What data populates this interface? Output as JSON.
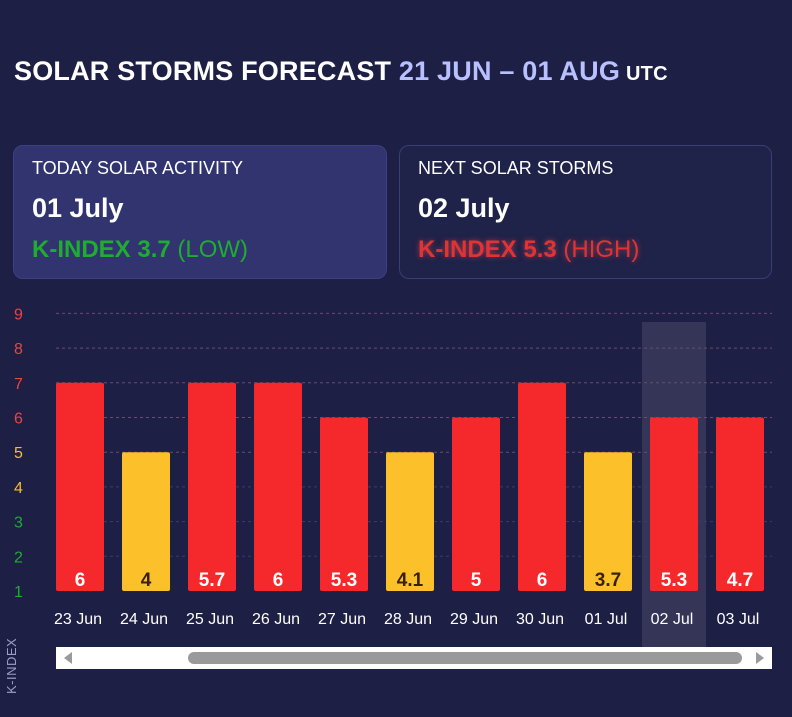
{
  "header": {
    "title": "SOLAR STORMS FORECAST",
    "range": "21 JUN – 01 AUG",
    "tz": "UTC"
  },
  "today": {
    "label": "TODAY SOLAR ACTIVITY",
    "date": "01 July",
    "kindex_label": "K-INDEX 3.7",
    "level": "(LOW)"
  },
  "next": {
    "label": "NEXT SOLAR STORMS",
    "date": "02 July",
    "kindex_label": "K-INDEX 5.3",
    "level": "(HIGH)"
  },
  "chart_data": {
    "type": "bar",
    "title": "",
    "xlabel": "",
    "ylabel": "K-INDEX",
    "ylim": [
      1,
      9
    ],
    "yticks": [
      1,
      2,
      3,
      4,
      5,
      6,
      7,
      8,
      9
    ],
    "ytick_colors": [
      "#1eac33",
      "#1eac33",
      "#1eac33",
      "#f5c02b",
      "#f5c02b",
      "#e84545",
      "#e84545",
      "#e84545",
      "#e84545"
    ],
    "categories": [
      "23 Jun",
      "24 Jun",
      "25 Jun",
      "26 Jun",
      "27 Jun",
      "28 Jun",
      "29 Jun",
      "30 Jun",
      "01 Jul",
      "02 Jul",
      "03 Jul"
    ],
    "values": [
      6,
      4,
      5.7,
      6,
      5.3,
      4.1,
      5,
      6,
      3.7,
      5.3,
      4.7
    ],
    "bar_heights": [
      7,
      5,
      7,
      7,
      6,
      5,
      6,
      7,
      5,
      6,
      6
    ],
    "labels": [
      "6",
      "4",
      "5.7",
      "6",
      "5.3",
      "4.1",
      "5",
      "6",
      "3.7",
      "5.3",
      "4.7"
    ],
    "bar_colors": [
      "#f5292b",
      "#fbc02a",
      "#f5292b",
      "#f5292b",
      "#f5292b",
      "#fbc02a",
      "#f5292b",
      "#f5292b",
      "#fbc02a",
      "#f5292b",
      "#f5292b"
    ],
    "label_colors": [
      "#ffffff",
      "#3a2200",
      "#ffffff",
      "#ffffff",
      "#ffffff",
      "#3a2200",
      "#ffffff",
      "#ffffff",
      "#3a2200",
      "#ffffff",
      "#ffffff"
    ],
    "highlight_index": 9,
    "gridlines": [
      5,
      6,
      7,
      8,
      9
    ]
  },
  "scroll": {
    "left_icon": "chevron-left-icon",
    "right_icon": "chevron-right-icon"
  }
}
